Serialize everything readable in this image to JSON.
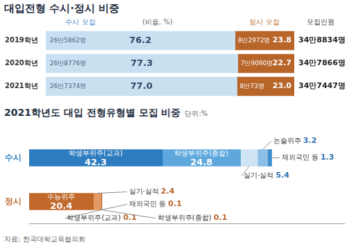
{
  "chart_data": [
    {
      "type": "bar",
      "title": "대입전형 수시·정시 비중",
      "orientation": "horizontal",
      "stacked": true,
      "data_labels": true,
      "tick_labels": "y",
      "grid": false,
      "categories": [
        "2019학년",
        "2020학년",
        "2021학년"
      ],
      "series": [
        {
          "name": "수시 모집",
          "color": "#c9e0f1",
          "values": [
            76.2,
            77.3,
            77.0
          ],
          "value_labels": [
            "76.2",
            "77.3",
            "77.0"
          ],
          "count_labels": [
            "26만5862명",
            "26만8776명",
            "26만7374명"
          ]
        },
        {
          "name": "정시 모집",
          "color": "#b8652a",
          "values": [
            23.8,
            22.7,
            23.0
          ],
          "value_labels": [
            "23.8",
            "22.7",
            "23.0"
          ],
          "count_labels": [
            "8만2972명",
            "7만9090명",
            "8만73명"
          ]
        }
      ],
      "unit_note": "(비율, %)",
      "total_label": "모집인원",
      "totals": [
        "34만8834명",
        "34만7866명",
        "34만7447명"
      ],
      "xlim": [
        0,
        100
      ]
    },
    {
      "type": "bar",
      "title": "2021학년도 대입 전형유형별 모집 비중",
      "unit": "단위:%",
      "orientation": "horizontal",
      "stacked": true,
      "data_labels": true,
      "tick_labels": "y",
      "grid": false,
      "categories": [
        "수시",
        "정시"
      ],
      "series": [
        {
          "name": "학생부위주(교과)",
          "color": "#2e7cc0",
          "values": [
            42.3,
            null
          ]
        },
        {
          "name": "학생부위주(종합)",
          "color": "#5fa8dd",
          "values": [
            24.8,
            null
          ]
        },
        {
          "name": "실기·실적",
          "color": "#cfe4f4",
          "values": [
            5.4,
            null
          ]
        },
        {
          "name": "논술위주",
          "color": "#8dbfe6",
          "values": [
            3.2,
            null
          ]
        },
        {
          "name": "재외국민 등",
          "color": "#3f8fd0",
          "values": [
            1.3,
            null
          ]
        },
        {
          "name": "수능위주",
          "color": "#c0692b",
          "values": [
            null,
            20.4
          ]
        },
        {
          "name": "실기·실적",
          "color": "#e39a62",
          "values": [
            null,
            2.4
          ]
        },
        {
          "name": "재외국민 등",
          "color": "#8a4a1c",
          "values": [
            null,
            0.1
          ]
        },
        {
          "name": "학생부위주(교과)",
          "color": "#d9825a",
          "values": [
            null,
            0.1
          ]
        },
        {
          "name": "학생부위주(종합)",
          "color": "#a35a2a",
          "values": [
            null,
            0.1
          ]
        }
      ],
      "xlim": [
        0,
        100
      ],
      "source": "자료: 한국대학교육협의회"
    }
  ]
}
